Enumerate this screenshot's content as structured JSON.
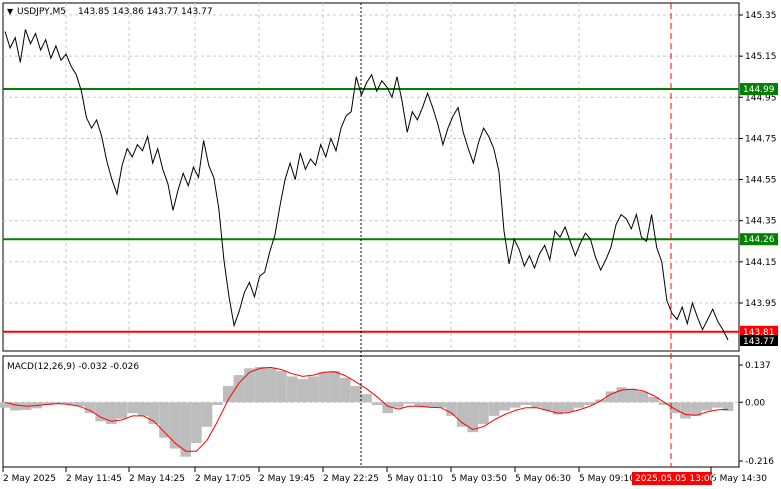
{
  "header": {
    "arrow": "▼",
    "symbol": "USDJPY,M5",
    "ohlc": "143.85 143.86 143.77 143.77"
  },
  "macd": {
    "label": "MACD(12,26,9) -0.032 -0.026"
  },
  "price_axis": {
    "ticks": [
      "145.35",
      "145.15",
      "144.95",
      "144.75",
      "144.55",
      "144.35",
      "144.15",
      "143.95"
    ],
    "tick_values": [
      145.35,
      145.15,
      144.95,
      144.75,
      144.55,
      144.35,
      144.15,
      143.95
    ]
  },
  "macd_axis": {
    "ticks": [
      "0.137",
      "0.00",
      "-0.216"
    ],
    "tick_values": [
      0.137,
      0.0,
      -0.216
    ]
  },
  "time_axis": {
    "labels": [
      "2 May 2025",
      "2 May 11:45",
      "2 May 14:25",
      "2 May 17:05",
      "2 May 19:45",
      "2 May 22:25",
      "5 May 01:10",
      "5 May 03:50",
      "5 May 06:30",
      "5 May 09:10",
      "5 May 14:30"
    ],
    "highlight": "2025.05.05 13:00"
  },
  "levels": [
    {
      "name": "resistance-level",
      "value": 144.99,
      "label": "144.99",
      "color": "#008000"
    },
    {
      "name": "support-level",
      "value": 144.26,
      "label": "144.26",
      "color": "#008000"
    },
    {
      "name": "low-level",
      "value": 143.81,
      "label": "143.81",
      "color": "#ff0000"
    }
  ],
  "current_price": {
    "value": 143.77,
    "label": "143.77"
  },
  "colors": {
    "price_line": "#000000",
    "histogram": "#bdbdbd",
    "signal": "#ff0000",
    "grid": "#c8c8c8",
    "cursor": "#000000",
    "marker": "#ff0000"
  },
  "chart_data": {
    "type": "line",
    "title": "",
    "price_series": [
      145.27,
      145.19,
      145.24,
      145.12,
      145.28,
      145.21,
      145.26,
      145.18,
      145.23,
      145.14,
      145.2,
      145.13,
      145.16,
      145.1,
      145.06,
      144.98,
      144.85,
      144.8,
      144.84,
      144.76,
      144.64,
      144.55,
      144.48,
      144.62,
      144.7,
      144.66,
      144.72,
      144.69,
      144.76,
      144.63,
      144.7,
      144.6,
      144.53,
      144.4,
      144.5,
      144.58,
      144.52,
      144.61,
      144.56,
      144.74,
      144.62,
      144.56,
      144.41,
      144.16,
      143.98,
      143.84,
      143.91,
      144.0,
      144.05,
      143.98,
      144.08,
      144.1,
      144.2,
      144.28,
      144.42,
      144.55,
      144.63,
      144.55,
      144.68,
      144.6,
      144.65,
      144.62,
      144.72,
      144.66,
      144.75,
      144.69,
      144.8,
      144.86,
      144.88,
      145.05,
      144.96,
      145.02,
      145.06,
      144.98,
      145.03,
      145.0,
      144.95,
      145.05,
      144.93,
      144.78,
      144.88,
      144.84,
      144.9,
      144.97,
      144.9,
      144.82,
      144.72,
      144.8,
      144.86,
      144.9,
      144.78,
      144.7,
      144.63,
      144.73,
      144.8,
      144.76,
      144.7,
      144.59,
      144.3,
      144.14,
      144.26,
      144.21,
      144.13,
      144.18,
      144.12,
      144.19,
      144.23,
      144.16,
      144.3,
      144.27,
      144.32,
      144.25,
      144.18,
      144.24,
      144.29,
      144.26,
      144.17,
      144.11,
      144.16,
      144.22,
      144.33,
      144.38,
      144.36,
      144.31,
      144.38,
      144.27,
      144.25,
      144.38,
      144.22,
      144.15,
      143.96,
      143.9,
      143.87,
      143.93,
      143.85,
      143.95,
      143.88,
      143.82,
      143.87,
      143.92,
      143.86,
      143.82,
      143.77
    ],
    "macd_histogram": [
      -0.02,
      -0.03,
      -0.028,
      -0.022,
      -0.01,
      -0.005,
      -0.008,
      -0.015,
      -0.04,
      -0.07,
      -0.08,
      -0.06,
      -0.04,
      -0.05,
      -0.08,
      -0.13,
      -0.17,
      -0.2,
      -0.15,
      -0.09,
      -0.01,
      0.06,
      0.1,
      0.125,
      0.13,
      0.127,
      0.115,
      0.095,
      0.085,
      0.095,
      0.11,
      0.115,
      0.09,
      0.06,
      0.03,
      -0.01,
      -0.04,
      -0.02,
      -0.005,
      -0.015,
      -0.02,
      -0.02,
      -0.05,
      -0.09,
      -0.11,
      -0.08,
      -0.05,
      -0.03,
      -0.02,
      -0.01,
      -0.02,
      -0.03,
      -0.045,
      -0.035,
      -0.02,
      -0.01,
      0.01,
      0.04,
      0.055,
      0.05,
      0.04,
      0.02,
      -0.01,
      -0.04,
      -0.06,
      -0.05,
      -0.03,
      -0.02,
      -0.032
    ],
    "macd_signal": [
      0.0,
      -0.01,
      -0.015,
      -0.012,
      -0.008,
      -0.005,
      -0.008,
      -0.015,
      -0.03,
      -0.055,
      -0.07,
      -0.065,
      -0.05,
      -0.05,
      -0.07,
      -0.11,
      -0.15,
      -0.18,
      -0.18,
      -0.14,
      -0.07,
      0.01,
      0.07,
      0.11,
      0.125,
      0.128,
      0.12,
      0.105,
      0.095,
      0.1,
      0.11,
      0.112,
      0.098,
      0.075,
      0.05,
      0.02,
      -0.015,
      -0.025,
      -0.015,
      -0.015,
      -0.018,
      -0.02,
      -0.04,
      -0.075,
      -0.1,
      -0.09,
      -0.065,
      -0.045,
      -0.03,
      -0.02,
      -0.02,
      -0.03,
      -0.04,
      -0.038,
      -0.028,
      -0.015,
      0.005,
      0.03,
      0.045,
      0.048,
      0.042,
      0.025,
      0.0,
      -0.025,
      -0.045,
      -0.048,
      -0.036,
      -0.028,
      -0.026
    ]
  }
}
